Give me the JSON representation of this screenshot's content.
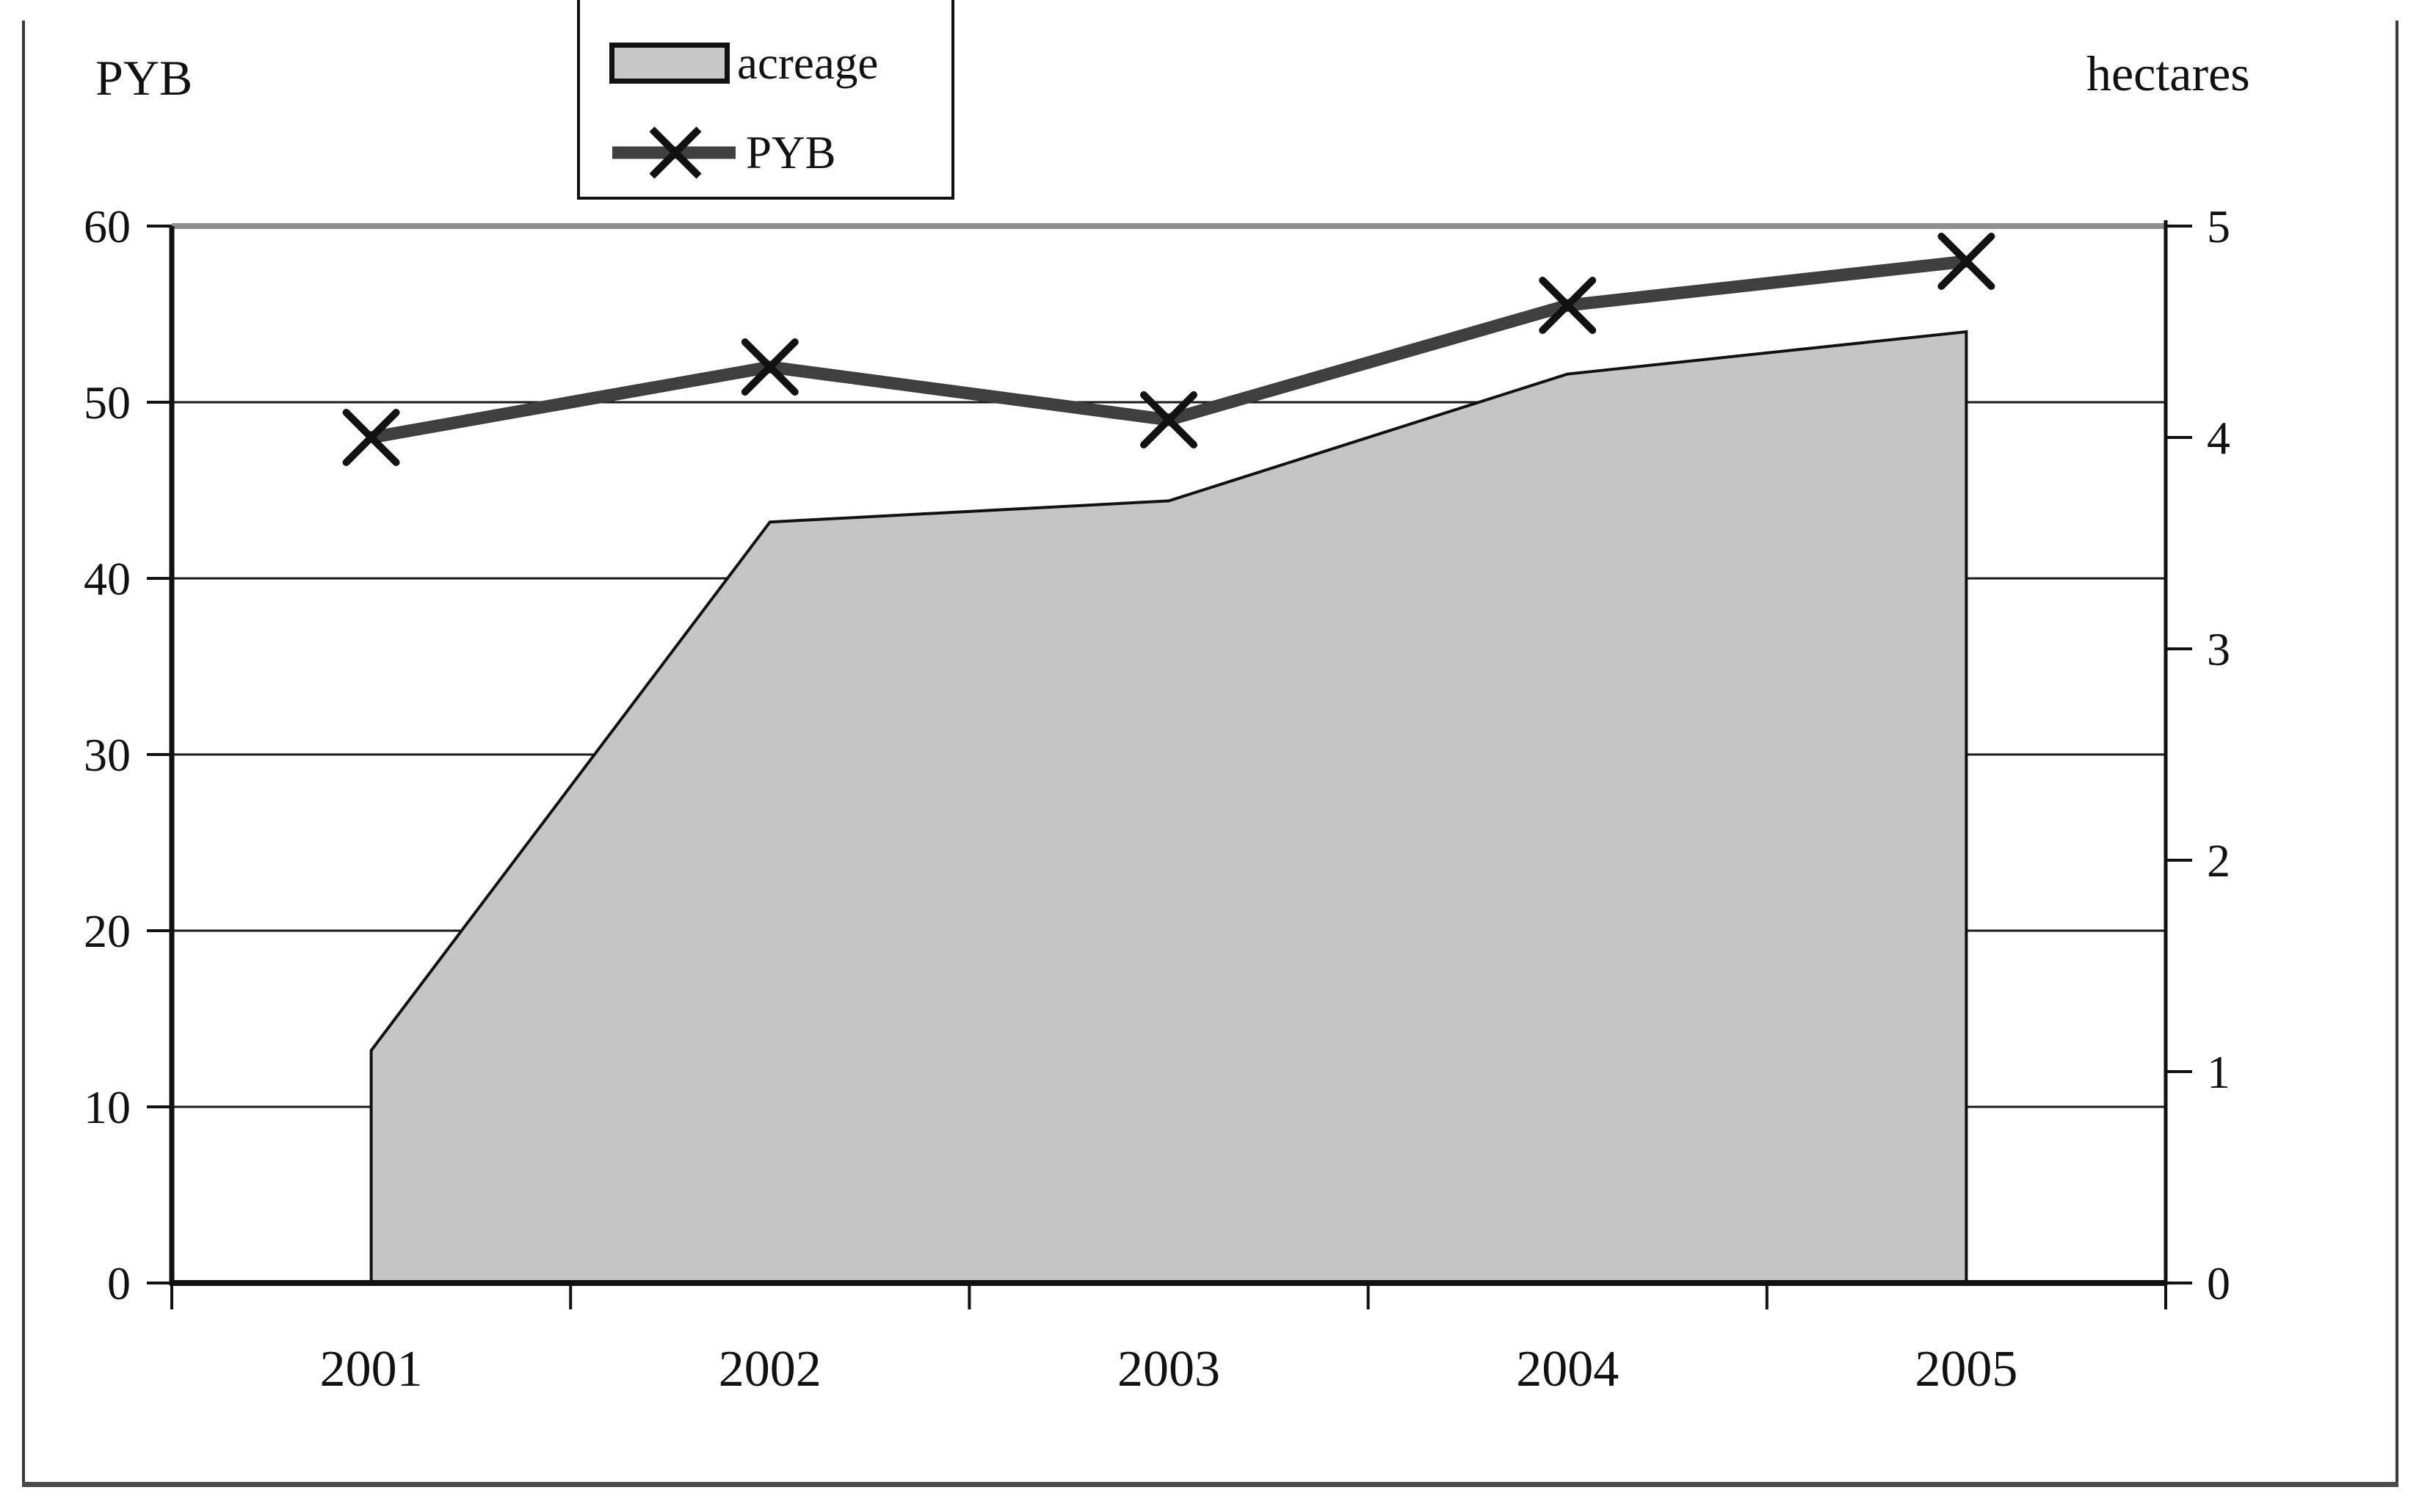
{
  "figure": {
    "left_axis_title": "PYB",
    "right_axis_title": "hectares"
  },
  "legend": {
    "items": [
      {
        "label": "acreage",
        "symbol": "gray-area-swatch"
      },
      {
        "label": "PYB",
        "symbol": "thick-line-with-x-marker"
      }
    ]
  },
  "chart_data": {
    "type": "combo",
    "categories": [
      "2001",
      "2002",
      "2003",
      "2004",
      "2005"
    ],
    "series": [
      {
        "name": "acreage",
        "type": "area",
        "axis": "right",
        "unit": "hectares",
        "values": [
          1.1,
          3.6,
          3.7,
          4.3,
          4.5
        ]
      },
      {
        "name": "PYB",
        "type": "line",
        "axis": "left",
        "marker": "x",
        "values": [
          48,
          52,
          49,
          55.5,
          58
        ]
      }
    ],
    "left_axis": {
      "title": "PYB",
      "min": 0,
      "max": 60,
      "step": 10,
      "tick_values": [
        0,
        10,
        20,
        30,
        40,
        50,
        60
      ]
    },
    "right_axis": {
      "title": "hectares",
      "min": 0,
      "max": 5,
      "step": 1,
      "tick_values": [
        0,
        1,
        2,
        3,
        4,
        5
      ]
    },
    "x_axis": {
      "labels": [
        "2001",
        "2002",
        "2003",
        "2004",
        "2005"
      ]
    },
    "grid": "horizontal",
    "legend_position": "top",
    "colors": {
      "area_fill": "#c5c5c5",
      "area_border": "#111111",
      "line": "#3f3f3f",
      "marker": "#111111",
      "gridline": "#1a1a1a",
      "top_gridline": "#8f8f8f",
      "axis": "#111111"
    }
  }
}
